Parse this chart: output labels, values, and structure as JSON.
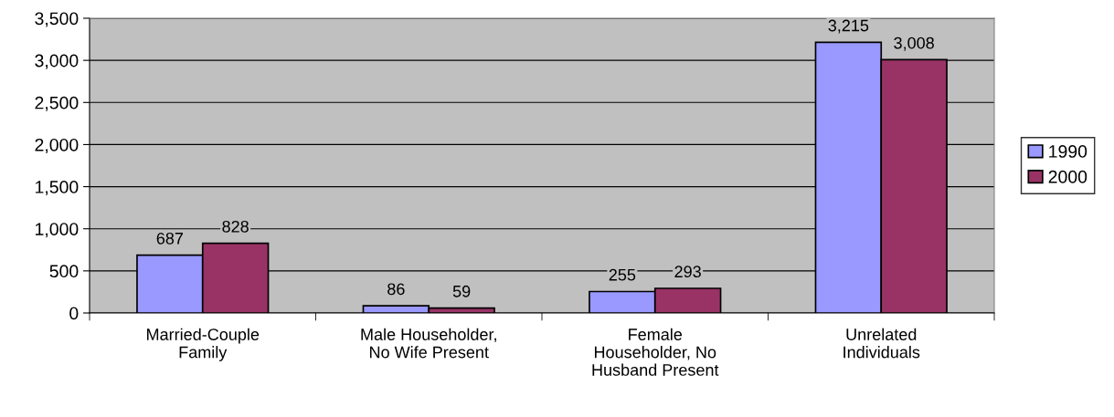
{
  "chart_data": {
    "type": "bar",
    "categories": [
      "Married-Couple\nFamily",
      "Male Householder,\nNo Wife Present",
      "Female\nHouseholder, No\nHusband Present",
      "Unrelated\nIndividuals"
    ],
    "series": [
      {
        "name": "1990",
        "color": "#9999ff",
        "values": [
          687,
          86,
          255,
          3215
        ],
        "value_labels": [
          "687",
          "86",
          "255",
          "3,215"
        ]
      },
      {
        "name": "2000",
        "color": "#993366",
        "values": [
          828,
          59,
          293,
          3008
        ],
        "value_labels": [
          "828",
          "59",
          "293",
          "3,008"
        ]
      }
    ],
    "ylim": [
      0,
      3500
    ],
    "yticks": [
      {
        "value": 0,
        "label": "0"
      },
      {
        "value": 500,
        "label": "500"
      },
      {
        "value": 1000,
        "label": "1,000"
      },
      {
        "value": 1500,
        "label": "1,500"
      },
      {
        "value": 2000,
        "label": "2,000"
      },
      {
        "value": 2500,
        "label": "2,500"
      },
      {
        "value": 3000,
        "label": "3,000"
      },
      {
        "value": 3500,
        "label": "3,500"
      }
    ],
    "grid": "y",
    "legend": "right"
  }
}
